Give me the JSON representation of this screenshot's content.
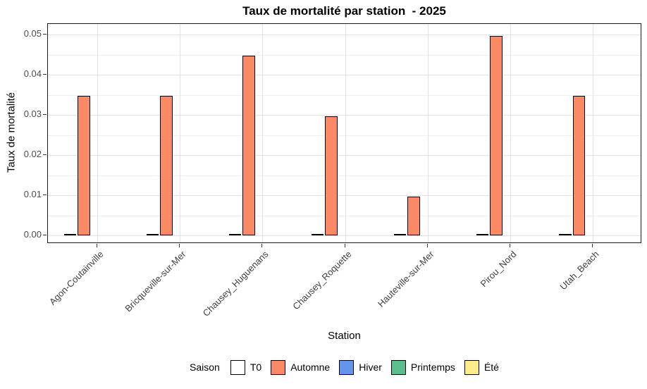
{
  "chart_data": {
    "type": "bar",
    "title": "Taux de mortalité par station  - 2025",
    "xlabel": "Station",
    "ylabel": "Taux de mortalité",
    "legend_title": "Saison",
    "legend_position": "bottom",
    "grid": true,
    "categories": [
      "Agon-Coutainville",
      "Bricqueville-sur-Mer",
      "Chausey_Huguenans",
      "Chausey_Roquette",
      "Hauteville-sur-Mer",
      "Pirou_Nord",
      "Utah_Beach"
    ],
    "series": [
      {
        "name": "T0",
        "color": "#FFFFFF",
        "values": [
          0,
          0,
          0,
          0,
          0,
          0,
          0
        ]
      },
      {
        "name": "Automne",
        "color": "#FA8A66",
        "values": [
          0.035,
          0.035,
          0.045,
          0.03,
          0.01,
          0.05,
          0.035
        ]
      },
      {
        "name": "Hiver",
        "color": "#6495ED",
        "values": []
      },
      {
        "name": "Printemps",
        "color": "#5CBE8F",
        "values": []
      },
      {
        "name": "Été",
        "color": "#FFEC8B",
        "values": []
      }
    ],
    "ylim": [
      0,
      0.05
    ],
    "yticks": [
      0,
      0.01,
      0.02,
      0.03,
      0.04,
      0.05
    ],
    "ytick_labels": [
      "0.00",
      "0.01",
      "0.02",
      "0.03",
      "0.04",
      "0.05"
    ],
    "colors": {
      "bar_outline": "#000000",
      "grid_major": "#E3E3E3",
      "grid_minor": "#EFEFEF",
      "axis_text": "#4D4D4D",
      "panel_border": "#1A1A1A"
    }
  }
}
